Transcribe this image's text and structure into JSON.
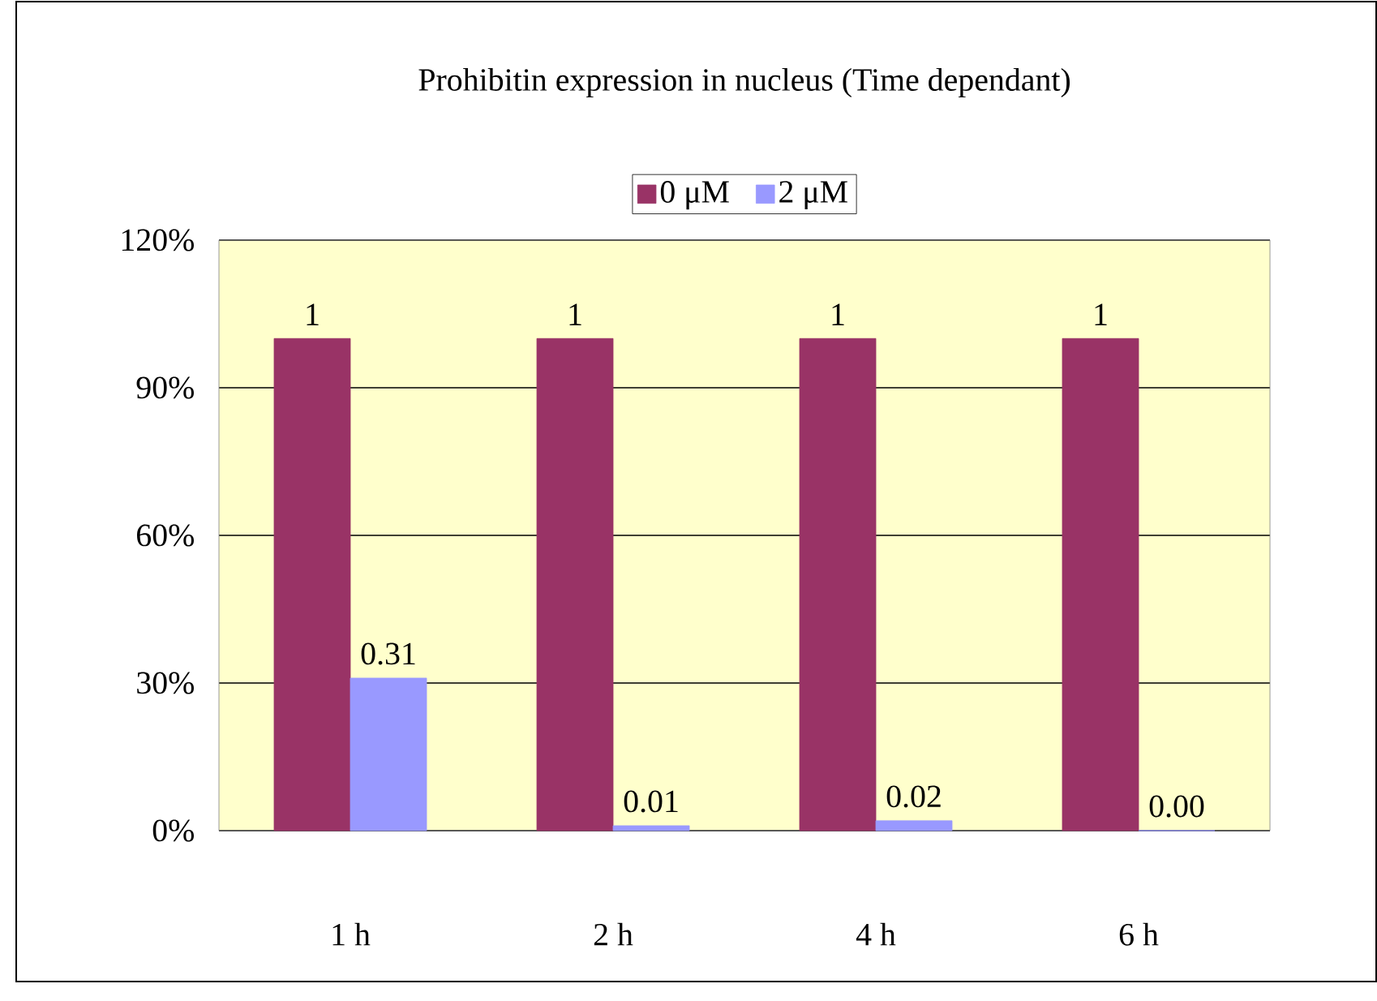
{
  "chart_data": {
    "type": "bar",
    "title": "Prohibitin expression in nucleus (Time dependant)",
    "categories": [
      "1 h",
      "2 h",
      "4 h",
      "6 h"
    ],
    "series": [
      {
        "name": "0 μM",
        "color": "#993366",
        "values": [
          1,
          1,
          1,
          1
        ],
        "value_labels": [
          "1",
          "1",
          "1",
          "1"
        ]
      },
      {
        "name": "2 μM",
        "color": "#9999ff",
        "values": [
          0.31,
          0.01,
          0.02,
          0.0
        ],
        "value_labels": [
          "0.31",
          "0.01",
          "0.02",
          "0.00"
        ]
      }
    ],
    "ylim": [
      0,
      1.2
    ],
    "yticks": [
      {
        "value": 0,
        "label": "0%"
      },
      {
        "value": 0.3,
        "label": "30%"
      },
      {
        "value": 0.6,
        "label": "60%"
      },
      {
        "value": 0.9,
        "label": "90%"
      },
      {
        "value": 1.2,
        "label": "120%"
      }
    ],
    "grid": "y",
    "legend": "top"
  }
}
